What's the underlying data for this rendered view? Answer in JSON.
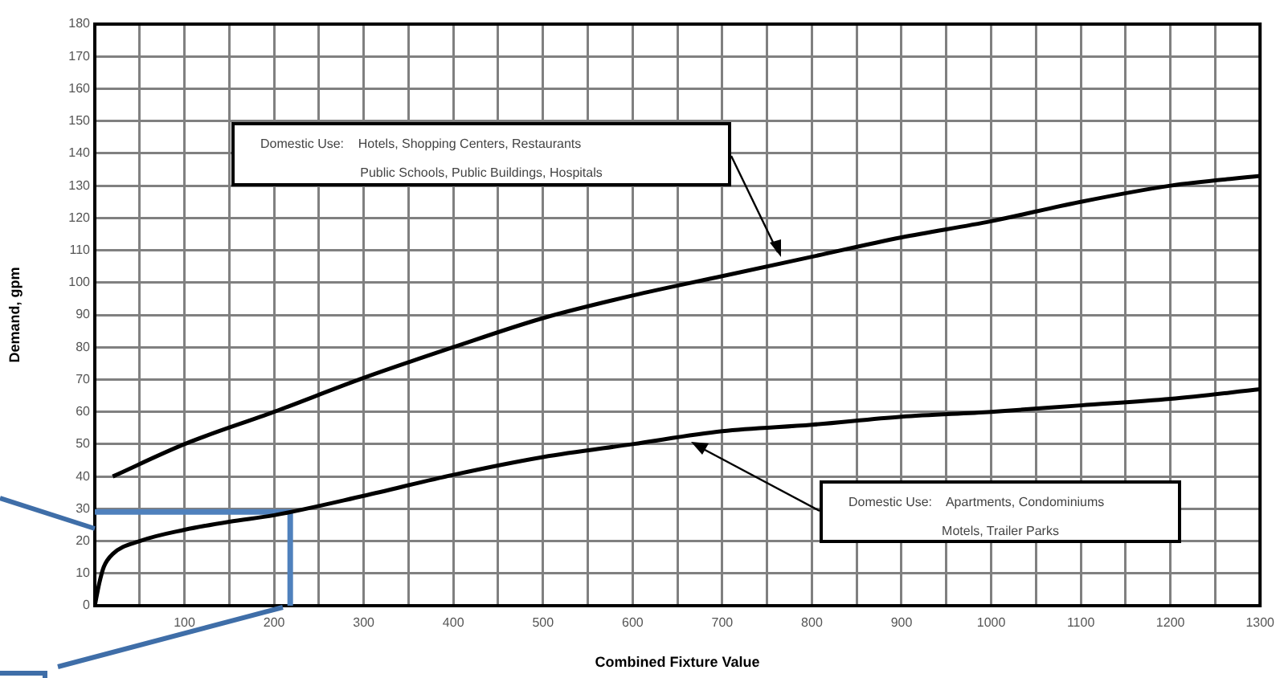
{
  "chart_data": {
    "type": "line",
    "xlabel": "Combined Fixture Value",
    "ylabel": "Demand, gpm",
    "xlim": [
      0,
      1300
    ],
    "ylim": [
      0,
      180
    ],
    "xticks": [
      {
        "value": 0,
        "label": null
      },
      {
        "value": 50,
        "label": null
      },
      100,
      {
        "value": 150,
        "label": null
      },
      200,
      {
        "value": 250,
        "label": null
      },
      300,
      {
        "value": 350,
        "label": null
      },
      400,
      {
        "value": 450,
        "label": null
      },
      500,
      {
        "value": 550,
        "label": null
      },
      600,
      {
        "value": 650,
        "label": null
      },
      700,
      {
        "value": 750,
        "label": null
      },
      800,
      {
        "value": 850,
        "label": null
      },
      900,
      {
        "value": 950,
        "label": null
      },
      1000,
      {
        "value": 1050,
        "label": null
      },
      1100,
      {
        "value": 1150,
        "label": null
      },
      1200,
      {
        "value": 1250,
        "label": null
      },
      1300
    ],
    "yticks": [
      0,
      10,
      20,
      30,
      40,
      50,
      60,
      70,
      80,
      90,
      100,
      110,
      120,
      130,
      140,
      150,
      160,
      170,
      180
    ],
    "grid": true,
    "legend": false,
    "marker": "none",
    "line_style": "solid",
    "series": [
      {
        "color": "#000000",
        "x": [
          20,
          100,
          200,
          300,
          400,
          500,
          600,
          700,
          800,
          900,
          1000,
          1100,
          1200,
          1300
        ],
        "values": [
          40,
          50,
          60,
          70.5,
          80,
          89,
          96,
          102,
          108,
          114,
          119,
          125,
          130,
          133
        ]
      },
      {
        "color": "#000000",
        "x": [
          0,
          5,
          10,
          20,
          50,
          100,
          150,
          200,
          300,
          400,
          500,
          600,
          700,
          800,
          900,
          1000,
          1100,
          1200,
          1300
        ],
        "values": [
          0,
          7,
          12,
          16,
          20,
          23.5,
          26,
          28,
          34,
          40.5,
          46,
          50,
          54,
          56,
          58.5,
          60,
          62,
          64,
          67
        ]
      },
      {
        "color": "#4f81bd",
        "x": [
          0,
          218,
          218
        ],
        "values": [
          29,
          29,
          0
        ]
      }
    ],
    "annotations": [
      "Domestic Use:    Hotels, Shopping Centers, Restaurants",
      "Public Schools, Public Buildings, Hospitals",
      "Domestic Use:    Apartments, Condominiums",
      "Motels, Trailer Parks"
    ]
  }
}
